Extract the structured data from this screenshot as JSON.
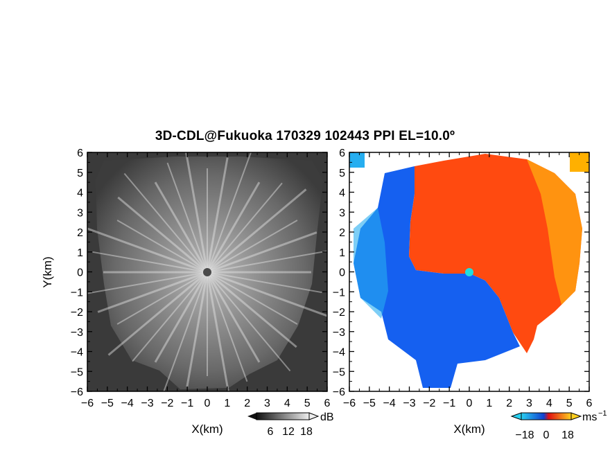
{
  "title": "3D-CDL@Fukuoka 170329 102443 PPI EL=10.0º",
  "colors": {
    "velocity_neg": "#1560f0",
    "velocity_pos": "#ff4a10",
    "velocity_far_pos": "#ffb000",
    "velocity_far_neg": "#26aef0",
    "center_marker": "#22dddd"
  },
  "chart_data": [
    {
      "type": "heatmap",
      "panel": "left",
      "quantity": "reflectivity / SNR",
      "xlabel": "X(km)",
      "ylabel": "Y(km)",
      "xlim": [
        -6,
        6
      ],
      "ylim": [
        -6,
        6
      ],
      "x_ticks": [
        "−6",
        "−5",
        "−4",
        "−3",
        "−2",
        "−1",
        "0",
        "1",
        "2",
        "3",
        "4",
        "5",
        "6"
      ],
      "y_ticks": [
        "6",
        "5",
        "4",
        "3",
        "2",
        "1",
        "0",
        "−1",
        "−2",
        "−3",
        "−4",
        "−5",
        "−6"
      ],
      "colorbar": {
        "unit": "dB",
        "tick_labels": [
          "6",
          "12",
          "18"
        ],
        "range": [
          0,
          24
        ],
        "colormap": "grayscale"
      },
      "grid": false
    },
    {
      "type": "heatmap",
      "panel": "right",
      "quantity": "radial velocity",
      "xlabel": "X(km)",
      "ylabel": "",
      "xlim": [
        -6,
        6
      ],
      "ylim": [
        -6,
        6
      ],
      "x_ticks": [
        "−6",
        "−5",
        "−4",
        "−3",
        "−2",
        "−1",
        "0",
        "1",
        "2",
        "3",
        "4",
        "5",
        "6"
      ],
      "y_ticks": [
        "6",
        "5",
        "4",
        "3",
        "2",
        "1",
        "0",
        "−1",
        "−2",
        "−3",
        "−4",
        "−5",
        "−6"
      ],
      "colorbar": {
        "unit": "ms",
        "unit_exp": "−1",
        "tick_labels": [
          "−18",
          "0",
          "18"
        ],
        "range": [
          -27,
          27
        ],
        "colormap": "blue-orange"
      },
      "grid": false
    }
  ]
}
